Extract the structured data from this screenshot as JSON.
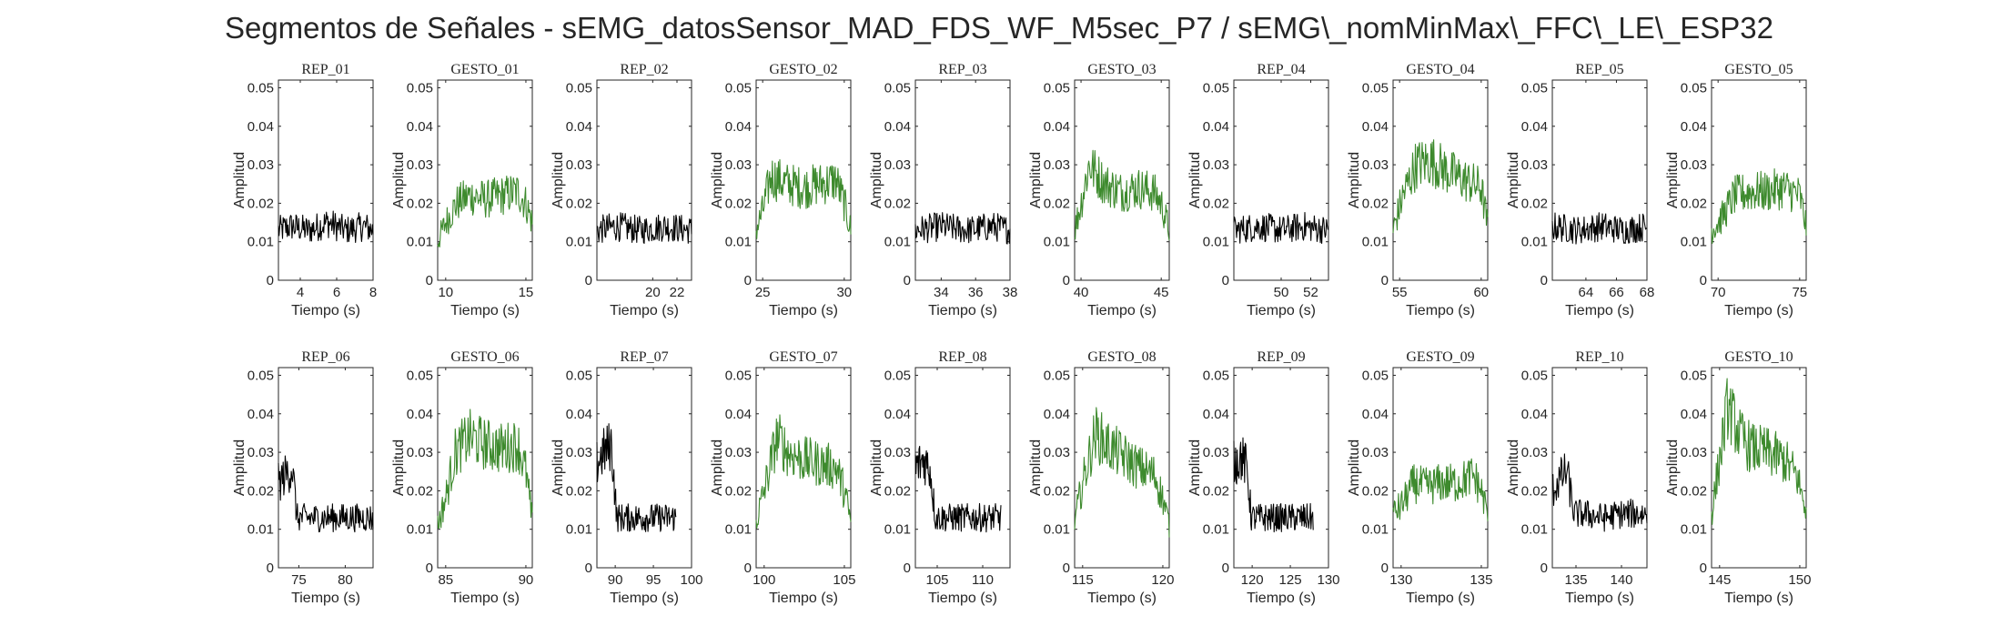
{
  "figure": {
    "title": "Segmentos de Señales - sEMG_datosSensor_MAD_FDS_WF_M5sec_P7 / sEMG\\_nomMinMax\\_FFC\\_LE\\_ESP32"
  },
  "colors": {
    "rep": "#000000",
    "gesto": "#3d8a2d",
    "axis": "#262626"
  },
  "chart_data": [
    {
      "type": "line",
      "title": "REP_01",
      "xlabel": "Tiempo (s)",
      "ylabel": "Amplitud",
      "xlim": [
        2.8,
        8
      ],
      "ylim": [
        0,
        0.052
      ],
      "xticks": [
        4,
        6,
        8
      ],
      "yticks": [
        0,
        0.01,
        0.02,
        0.03,
        0.04,
        0.05
      ],
      "series": [
        {
          "color": "#000000",
          "x": [
            2.8,
            3.5,
            4.5,
            5.5,
            6.5,
            7.5,
            8
          ],
          "y": [
            0.013,
            0.014,
            0.013,
            0.015,
            0.013,
            0.014,
            0.013
          ]
        }
      ]
    },
    {
      "type": "line",
      "title": "GESTO_01",
      "xlabel": "Tiempo (s)",
      "ylabel": "Amplitud",
      "xlim": [
        9.5,
        15.4
      ],
      "ylim": [
        0,
        0.052
      ],
      "xticks": [
        10,
        15
      ],
      "yticks": [
        0,
        0.01,
        0.02,
        0.03,
        0.04,
        0.05
      ],
      "series": [
        {
          "color": "#3d8a2d",
          "x": [
            9.5,
            10,
            10.7,
            11.5,
            12.5,
            13.5,
            14.5,
            15,
            15.4
          ],
          "y": [
            0.01,
            0.015,
            0.02,
            0.022,
            0.021,
            0.022,
            0.023,
            0.02,
            0.015
          ]
        }
      ]
    },
    {
      "type": "line",
      "title": "REP_02",
      "xlabel": "Tiempo (s)",
      "ylabel": "Amplitud",
      "xlim": [
        15.4,
        23.2
      ],
      "ylim": [
        0,
        0.052
      ],
      "xticks": [
        20,
        22
      ],
      "yticks": [
        0,
        0.01,
        0.02,
        0.03,
        0.04,
        0.05
      ],
      "series": [
        {
          "color": "#000000",
          "x": [
            15.4,
            17,
            19,
            21,
            23.2
          ],
          "y": [
            0.013,
            0.014,
            0.013,
            0.014,
            0.013
          ]
        }
      ]
    },
    {
      "type": "line",
      "title": "GESTO_02",
      "xlabel": "Tiempo (s)",
      "ylabel": "Amplitud",
      "xlim": [
        24.6,
        30.4
      ],
      "ylim": [
        0,
        0.052
      ],
      "xticks": [
        25,
        30
      ],
      "yticks": [
        0,
        0.01,
        0.02,
        0.03,
        0.04,
        0.05
      ],
      "series": [
        {
          "color": "#3d8a2d",
          "x": [
            24.6,
            25,
            25.5,
            26.5,
            27.5,
            28.5,
            29.5,
            30,
            30.4
          ],
          "y": [
            0.013,
            0.018,
            0.027,
            0.025,
            0.024,
            0.025,
            0.026,
            0.02,
            0.013
          ]
        }
      ]
    },
    {
      "type": "line",
      "title": "REP_03",
      "xlabel": "Tiempo (s)",
      "ylabel": "Amplitud",
      "xlim": [
        32.5,
        38
      ],
      "ylim": [
        0,
        0.052
      ],
      "xticks": [
        34,
        36,
        38
      ],
      "yticks": [
        0,
        0.01,
        0.02,
        0.03,
        0.04,
        0.05
      ],
      "series": [
        {
          "color": "#000000",
          "x": [
            32.5,
            34,
            35.5,
            37,
            38
          ],
          "y": [
            0.013,
            0.014,
            0.013,
            0.014,
            0.013
          ]
        }
      ]
    },
    {
      "type": "line",
      "title": "GESTO_03",
      "xlabel": "Tiempo (s)",
      "ylabel": "Amplitud",
      "xlim": [
        39.6,
        45.5
      ],
      "ylim": [
        0,
        0.052
      ],
      "xticks": [
        40,
        45
      ],
      "yticks": [
        0,
        0.01,
        0.02,
        0.03,
        0.04,
        0.05
      ],
      "series": [
        {
          "color": "#3d8a2d",
          "x": [
            39.6,
            40,
            40.5,
            41.5,
            42.5,
            43.5,
            44.5,
            45,
            45.5
          ],
          "y": [
            0.013,
            0.02,
            0.03,
            0.025,
            0.023,
            0.024,
            0.023,
            0.02,
            0.013
          ]
        }
      ]
    },
    {
      "type": "line",
      "title": "REP_04",
      "xlabel": "Tiempo (s)",
      "ylabel": "Amplitud",
      "xlim": [
        46.8,
        53.2
      ],
      "ylim": [
        0,
        0.052
      ],
      "xticks": [
        50,
        52
      ],
      "yticks": [
        0,
        0.01,
        0.02,
        0.03,
        0.04,
        0.05
      ],
      "series": [
        {
          "color": "#000000",
          "x": [
            46.8,
            48.5,
            50,
            51.5,
            53.2
          ],
          "y": [
            0.013,
            0.014,
            0.013,
            0.014,
            0.013
          ]
        }
      ]
    },
    {
      "type": "line",
      "title": "GESTO_04",
      "xlabel": "Tiempo (s)",
      "ylabel": "Amplitud",
      "xlim": [
        54.6,
        60.4
      ],
      "ylim": [
        0,
        0.052
      ],
      "xticks": [
        55,
        60
      ],
      "yticks": [
        0,
        0.01,
        0.02,
        0.03,
        0.04,
        0.05
      ],
      "series": [
        {
          "color": "#3d8a2d",
          "x": [
            54.6,
            55.2,
            56,
            57,
            58,
            59,
            60,
            60.4
          ],
          "y": [
            0.013,
            0.022,
            0.03,
            0.031,
            0.028,
            0.026,
            0.024,
            0.014
          ]
        }
      ]
    },
    {
      "type": "line",
      "title": "REP_05",
      "xlabel": "Tiempo (s)",
      "ylabel": "Amplitud",
      "xlim": [
        61.8,
        68
      ],
      "ylim": [
        0,
        0.052
      ],
      "xticks": [
        64,
        66,
        68
      ],
      "yticks": [
        0,
        0.01,
        0.02,
        0.03,
        0.04,
        0.05
      ],
      "series": [
        {
          "color": "#000000",
          "x": [
            61.8,
            63.5,
            65,
            66.5,
            68
          ],
          "y": [
            0.014,
            0.013,
            0.014,
            0.013,
            0.014
          ]
        }
      ]
    },
    {
      "type": "line",
      "title": "GESTO_05",
      "xlabel": "Tiempo (s)",
      "ylabel": "Amplitud",
      "xlim": [
        69.6,
        75.4
      ],
      "ylim": [
        0,
        0.052
      ],
      "xticks": [
        70,
        75
      ],
      "yticks": [
        0,
        0.01,
        0.02,
        0.03,
        0.04,
        0.05
      ],
      "series": [
        {
          "color": "#3d8a2d",
          "x": [
            69.6,
            70.2,
            71,
            72,
            73,
            74,
            75,
            75.4
          ],
          "y": [
            0.013,
            0.016,
            0.022,
            0.023,
            0.023,
            0.024,
            0.022,
            0.014
          ]
        }
      ]
    },
    {
      "type": "line",
      "title": "REP_06",
      "xlabel": "Tiempo (s)",
      "ylabel": "Amplitud",
      "xlim": [
        72.8,
        83
      ],
      "ylim": [
        0,
        0.052
      ],
      "xticks": [
        75,
        80
      ],
      "yticks": [
        0,
        0.01,
        0.02,
        0.03,
        0.04,
        0.05
      ],
      "series": [
        {
          "color": "#000000",
          "x": [
            72.8,
            73.5,
            74.3,
            74.8,
            76,
            78,
            80,
            83
          ],
          "y": [
            0.022,
            0.024,
            0.026,
            0.013,
            0.013,
            0.013,
            0.013,
            0.013
          ]
        }
      ]
    },
    {
      "type": "line",
      "title": "GESTO_06",
      "xlabel": "Tiempo (s)",
      "ylabel": "Amplitud",
      "xlim": [
        84.5,
        90.4
      ],
      "ylim": [
        0,
        0.052
      ],
      "xticks": [
        85,
        90
      ],
      "yticks": [
        0,
        0.01,
        0.02,
        0.03,
        0.04,
        0.05
      ],
      "series": [
        {
          "color": "#3d8a2d",
          "x": [
            84.5,
            85,
            85.6,
            86.5,
            87.5,
            88.5,
            89.5,
            90,
            90.4
          ],
          "y": [
            0.011,
            0.018,
            0.03,
            0.034,
            0.032,
            0.031,
            0.032,
            0.025,
            0.012
          ]
        }
      ]
    },
    {
      "type": "line",
      "title": "REP_07",
      "xlabel": "Tiempo (s)",
      "ylabel": "Amplitud",
      "xlim": [
        87.6,
        100
      ],
      "ylim": [
        0,
        0.052
      ],
      "xticks": [
        90,
        95,
        100
      ],
      "yticks": [
        0,
        0.01,
        0.02,
        0.03,
        0.04,
        0.05
      ],
      "series": [
        {
          "color": "#000000",
          "x": [
            87.6,
            88.5,
            89.5,
            90.2,
            92,
            94,
            96,
            98
          ],
          "y": [
            0.027,
            0.03,
            0.032,
            0.013,
            0.013,
            0.013,
            0.013,
            0.013
          ]
        }
      ]
    },
    {
      "type": "line",
      "title": "GESTO_07",
      "xlabel": "Tiempo (s)",
      "ylabel": "Amplitud",
      "xlim": [
        99.5,
        105.4
      ],
      "ylim": [
        0,
        0.052
      ],
      "xticks": [
        100,
        105
      ],
      "yticks": [
        0,
        0.01,
        0.02,
        0.03,
        0.04,
        0.05
      ],
      "series": [
        {
          "color": "#3d8a2d",
          "x": [
            99.5,
            100,
            100.8,
            101.5,
            102.5,
            103.5,
            104.5,
            105,
            105.4
          ],
          "y": [
            0.012,
            0.02,
            0.034,
            0.03,
            0.028,
            0.027,
            0.026,
            0.02,
            0.012
          ]
        }
      ]
    },
    {
      "type": "line",
      "title": "REP_08",
      "xlabel": "Tiempo (s)",
      "ylabel": "Amplitud",
      "xlim": [
        102.6,
        113
      ],
      "ylim": [
        0,
        0.052
      ],
      "xticks": [
        105,
        110
      ],
      "yticks": [
        0,
        0.01,
        0.02,
        0.03,
        0.04,
        0.05
      ],
      "series": [
        {
          "color": "#000000",
          "x": [
            102.6,
            103.5,
            104.2,
            104.8,
            106,
            108,
            110,
            112
          ],
          "y": [
            0.026,
            0.028,
            0.026,
            0.013,
            0.013,
            0.013,
            0.013,
            0.013
          ]
        }
      ]
    },
    {
      "type": "line",
      "title": "GESTO_08",
      "xlabel": "Tiempo (s)",
      "ylabel": "Amplitud",
      "xlim": [
        114.5,
        120.4
      ],
      "ylim": [
        0,
        0.052
      ],
      "xticks": [
        115,
        120
      ],
      "yticks": [
        0,
        0.01,
        0.02,
        0.03,
        0.04,
        0.05
      ],
      "series": [
        {
          "color": "#3d8a2d",
          "x": [
            114.5,
            115,
            115.8,
            116.5,
            117.5,
            118.5,
            119.5,
            120,
            120.4
          ],
          "y": [
            0.012,
            0.022,
            0.035,
            0.032,
            0.029,
            0.026,
            0.024,
            0.018,
            0.011
          ]
        }
      ]
    },
    {
      "type": "line",
      "title": "REP_09",
      "xlabel": "Tiempo (s)",
      "ylabel": "Amplitud",
      "xlim": [
        117.6,
        130
      ],
      "ylim": [
        0,
        0.052
      ],
      "xticks": [
        120,
        125,
        130
      ],
      "yticks": [
        0,
        0.01,
        0.02,
        0.03,
        0.04,
        0.05
      ],
      "series": [
        {
          "color": "#000000",
          "x": [
            117.6,
            118.5,
            119.3,
            119.9,
            121,
            123,
            125,
            128
          ],
          "y": [
            0.027,
            0.029,
            0.026,
            0.013,
            0.013,
            0.013,
            0.013,
            0.013
          ]
        }
      ]
    },
    {
      "type": "line",
      "title": "GESTO_09",
      "xlabel": "Tiempo (s)",
      "ylabel": "Amplitud",
      "xlim": [
        129.5,
        135.4
      ],
      "ylim": [
        0,
        0.052
      ],
      "xticks": [
        130,
        135
      ],
      "yticks": [
        0,
        0.01,
        0.02,
        0.03,
        0.04,
        0.05
      ],
      "series": [
        {
          "color": "#3d8a2d",
          "x": [
            129.5,
            130,
            130.8,
            131.5,
            132.5,
            133.5,
            134.5,
            135,
            135.4
          ],
          "y": [
            0.014,
            0.016,
            0.022,
            0.021,
            0.022,
            0.022,
            0.024,
            0.02,
            0.014
          ]
        }
      ]
    },
    {
      "type": "line",
      "title": "REP_10",
      "xlabel": "Tiempo (s)",
      "ylabel": "Amplitud",
      "xlim": [
        132.4,
        142.8
      ],
      "ylim": [
        0,
        0.052
      ],
      "xticks": [
        135,
        140
      ],
      "yticks": [
        0,
        0.01,
        0.02,
        0.03,
        0.04,
        0.05
      ],
      "series": [
        {
          "color": "#000000",
          "x": [
            132.4,
            133.2,
            134,
            134.8,
            136,
            138,
            140,
            142.8
          ],
          "y": [
            0.02,
            0.023,
            0.025,
            0.014,
            0.014,
            0.013,
            0.014,
            0.014
          ]
        }
      ]
    },
    {
      "type": "line",
      "title": "GESTO_10",
      "xlabel": "Tiempo (s)",
      "ylabel": "Amplitud",
      "xlim": [
        144.5,
        150.4
      ],
      "ylim": [
        0,
        0.052
      ],
      "xticks": [
        145,
        150
      ],
      "yticks": [
        0,
        0.01,
        0.02,
        0.03,
        0.04,
        0.05
      ],
      "series": [
        {
          "color": "#3d8a2d",
          "x": [
            144.5,
            145,
            145.5,
            146.3,
            147,
            148,
            149,
            149.8,
            150.4
          ],
          "y": [
            0.014,
            0.028,
            0.042,
            0.034,
            0.031,
            0.03,
            0.028,
            0.024,
            0.015
          ]
        }
      ]
    }
  ]
}
